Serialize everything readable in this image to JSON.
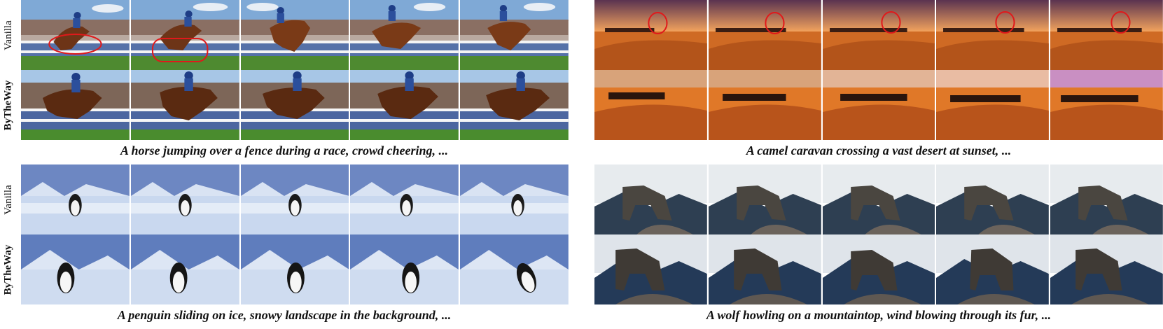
{
  "row_labels": {
    "vanilla": "Vanilla",
    "bytheway": "ByTheWay"
  },
  "panels": {
    "horse": {
      "caption": "A horse jumping over a fence during a race, crowd cheering, ..."
    },
    "camel": {
      "caption": "A camel caravan crossing a vast desert at sunset, ..."
    },
    "penguin": {
      "caption": "A penguin sliding on ice, snowy landscape in the background, ..."
    },
    "wolf": {
      "caption": "A wolf howling on a mountaintop, wind blowing through its fur, ..."
    }
  },
  "colors": {
    "highlight_circle": "#e0191b",
    "sky_blue": "#8fb8dc",
    "grass": "#3f7a2a",
    "sand": "#d06a22",
    "sunset": "#f1a45f",
    "snow": "#dfe8f3",
    "rock": "#5d5650"
  }
}
